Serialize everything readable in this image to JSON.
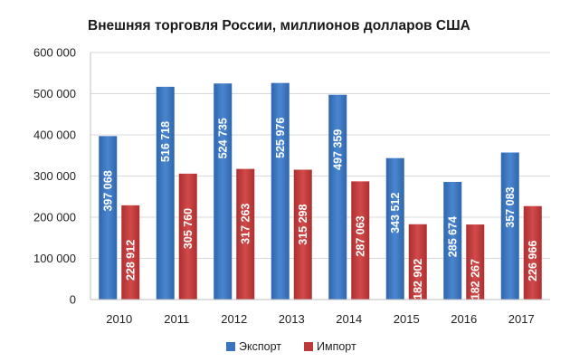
{
  "chart_data": {
    "type": "bar",
    "title": "Внешняя торговля России, миллионов долларов США",
    "xlabel": "",
    "ylabel": "",
    "ylim": [
      0,
      600000
    ],
    "yticks": [
      0,
      100000,
      200000,
      300000,
      400000,
      500000,
      600000
    ],
    "ytick_labels": [
      "0",
      "100 000",
      "200 000",
      "300 000",
      "400 000",
      "500 000",
      "600 000"
    ],
    "grid": true,
    "legend_position": "bottom",
    "categories": [
      "2010",
      "2011",
      "2012",
      "2013",
      "2014",
      "2015",
      "2016",
      "2017"
    ],
    "series": [
      {
        "name": "Экспорт",
        "color": "#3a74bd",
        "values": [
          397068,
          516718,
          524735,
          525976,
          497359,
          343512,
          285674,
          357083
        ],
        "labels": [
          "397 068",
          "516 718",
          "524 735",
          "525 976",
          "497 359",
          "343 512",
          "285 674",
          "357 083"
        ]
      },
      {
        "name": "Импорт",
        "color": "#c0393a",
        "values": [
          228912,
          305760,
          317263,
          315298,
          287063,
          182902,
          182267,
          226966
        ],
        "labels": [
          "228 912",
          "305 760",
          "317 263",
          "315 298",
          "287 063",
          "182 902",
          "182 267",
          "226 966"
        ]
      }
    ]
  }
}
